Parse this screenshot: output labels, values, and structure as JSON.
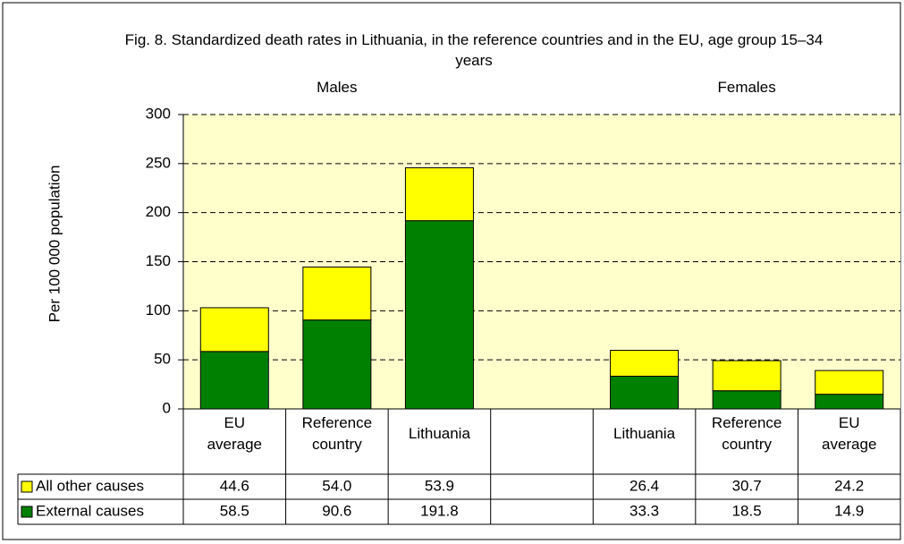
{
  "chart_data": {
    "type": "stacked_bar",
    "title": "Fig. 8. Standardized death rates in Lithuania, in the reference countries and in the EU, age group 15–34 years",
    "group_labels": [
      "Males",
      "Females"
    ],
    "ylabel": "Per 100 000 population",
    "categories": [
      "EU average",
      "Reference country",
      "Lithuania",
      null,
      "Lithuania",
      "Reference country",
      "EU average"
    ],
    "series": [
      {
        "name": "External causes",
        "color": "#008000",
        "values": [
          58.5,
          90.6,
          191.8,
          null,
          33.3,
          18.5,
          14.9
        ],
        "value_labels": [
          "58.5",
          "90.6",
          "191.8",
          null,
          "33.3",
          "18.5",
          "14.9"
        ]
      },
      {
        "name": "All other causes",
        "color": "#ffff00",
        "values": [
          44.6,
          54.0,
          53.9,
          null,
          26.4,
          30.7,
          24.2
        ],
        "value_labels": [
          "44.6",
          "54.0",
          "53.9",
          null,
          "26.4",
          "30.7",
          "24.2"
        ]
      }
    ],
    "ylim": [
      0,
      300
    ],
    "yticks": [
      0,
      50,
      100,
      150,
      200,
      250,
      300
    ],
    "grid": true
  }
}
